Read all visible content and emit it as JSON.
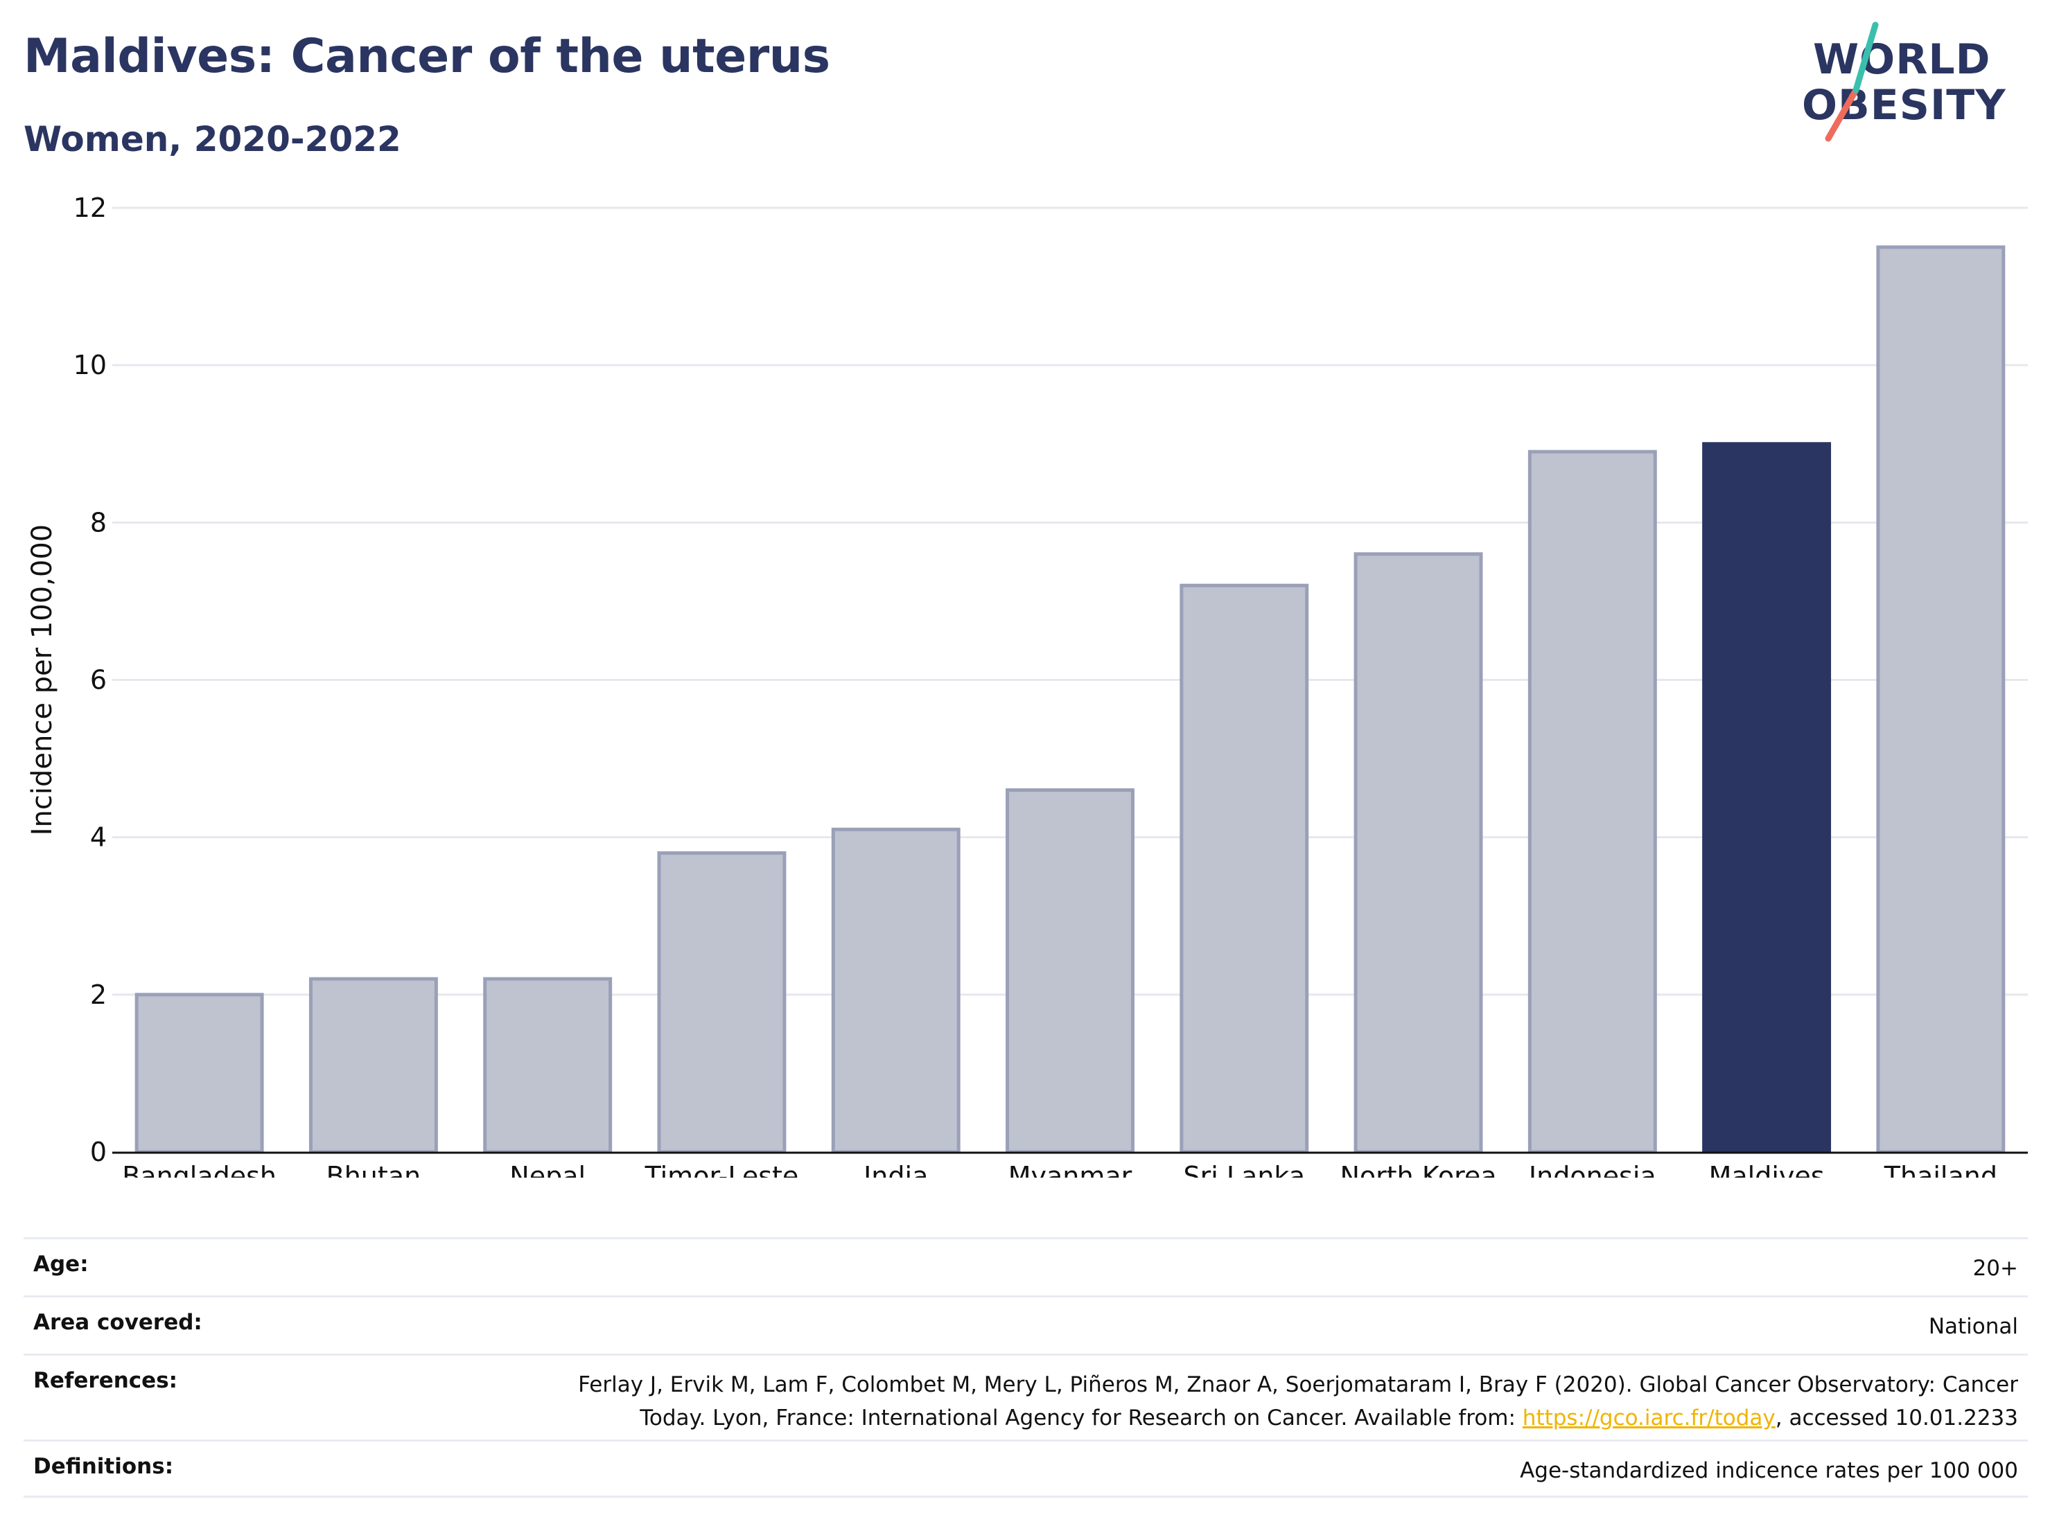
{
  "header": {
    "title": "Maldives: Cancer of the uterus",
    "subtitle": "Women, 2020-2022"
  },
  "logo": {
    "line1": "WORLD",
    "line2": "OBESITY"
  },
  "colors": {
    "highlight": "#2b3561",
    "bar": "#bfc3d0",
    "bar_edge": "#9aa0b7",
    "grid": "#e6e8ee",
    "logo_teal": "#3bbfad",
    "logo_red": "#ee6c5c",
    "link": "#f0b400"
  },
  "chart_data": {
    "type": "bar",
    "categories": [
      "Bangladesh",
      "Bhutan",
      "Nepal",
      "Timor-Leste",
      "India",
      "Myanmar",
      "Sri Lanka",
      "North Korea",
      "Indonesia",
      "Maldives",
      "Thailand"
    ],
    "values": [
      2.0,
      2.2,
      2.2,
      3.8,
      4.1,
      4.6,
      7.2,
      7.6,
      8.9,
      9.0,
      11.5
    ],
    "highlight": "Maldives",
    "xlabel": "",
    "ylabel": "Incidence per 100,000",
    "ylim": [
      0,
      12
    ],
    "yticks": [
      0,
      2,
      4,
      6,
      8,
      10,
      12
    ],
    "grid": true,
    "legend": "none"
  },
  "footer": {
    "age_label": "Age:",
    "age_value": "20+",
    "area_label": "Area covered:",
    "area_value": "National",
    "references_label": "References:",
    "references_text_1": "Ferlay J, Ervik M, Lam F, Colombet M, Mery L, Piñeros M, Znaor A, Soerjomataram I, Bray F (2020). Global Cancer Observatory: Cancer",
    "references_text_2": "Today. Lyon, France: International Agency for Research on Cancer. Available from: ",
    "references_link": "https://gco.iarc.fr/today",
    "references_text_3": ", accessed 10.01.2233",
    "definitions_label": "Definitions:",
    "definitions_value": "Age-standardized indicence rates per 100 000"
  }
}
